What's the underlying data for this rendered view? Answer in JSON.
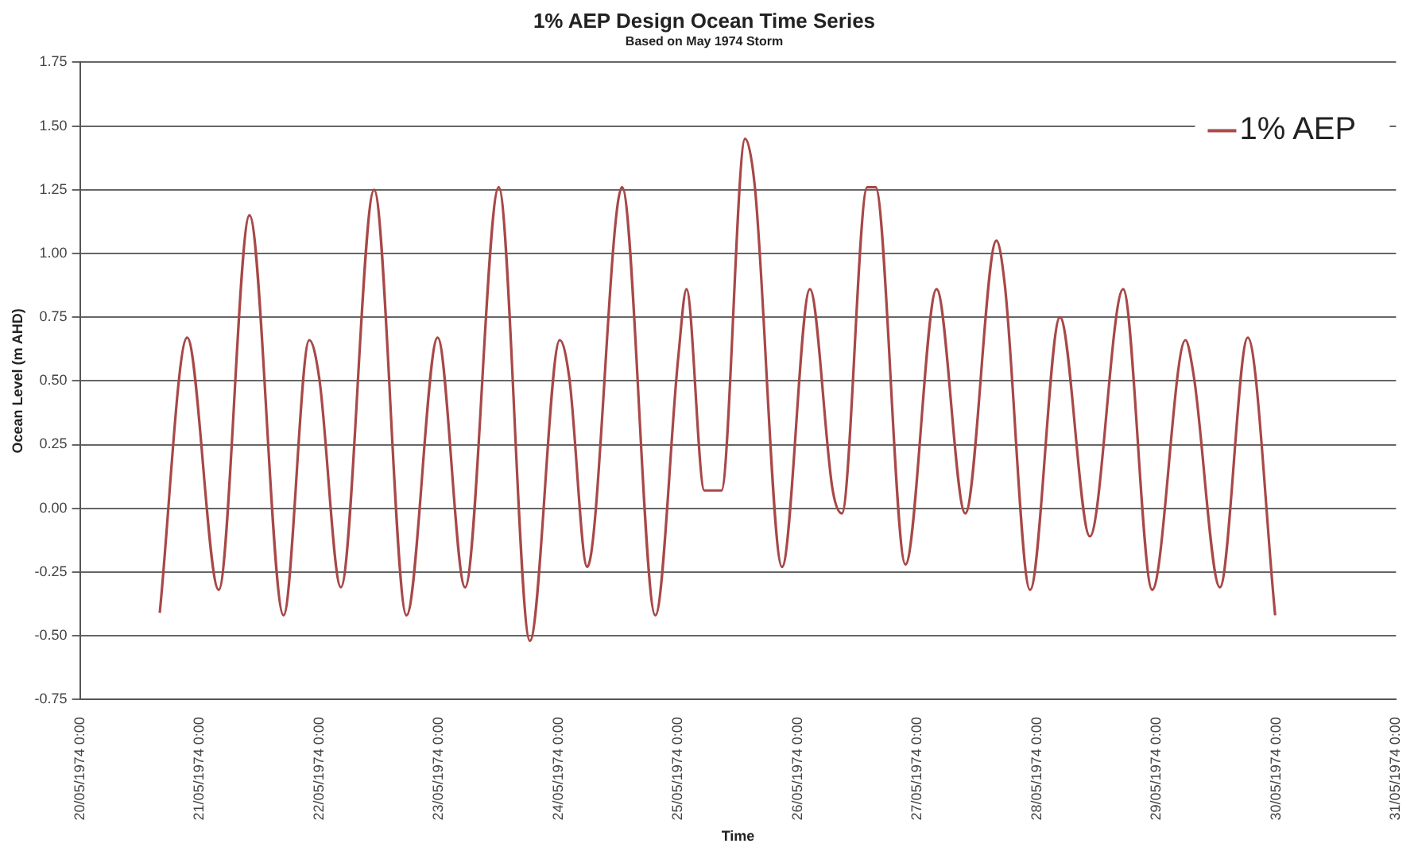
{
  "chart_data": {
    "type": "line",
    "title": "1% AEP Design Ocean Time Series",
    "subtitle": "Based on May 1974 Storm",
    "xlabel": "Time",
    "ylabel": "Ocean Level (m AHD)",
    "x": [
      "1974-05-20T16:00",
      "1974-05-20T21:30",
      "1974-05-21T03:50",
      "1974-05-21T10:00",
      "1974-05-21T16:50",
      "1974-05-21T22:00",
      "1974-05-22T00:00",
      "1974-05-22T04:20",
      "1974-05-22T11:00",
      "1974-05-22T17:30",
      "1974-05-22T23:45",
      "1974-05-23T05:15",
      "1974-05-23T12:00",
      "1974-05-23T18:15",
      "1974-05-24T00:15",
      "1974-05-24T02:10",
      "1974-05-24T05:45",
      "1974-05-24T12:45",
      "1974-05-24T19:25",
      "1974-05-25T00:00",
      "1974-05-25T01:40",
      "1974-05-25T05:15",
      "1974-05-25T08:40",
      "1974-05-25T13:25",
      "1974-05-25T15:20",
      "1974-05-25T20:50",
      "1974-05-26T02:25",
      "1974-05-26T07:00",
      "1974-05-26T08:50",
      "1974-05-26T13:55",
      "1974-05-26T15:35",
      "1974-05-26T21:35",
      "1974-05-27T03:50",
      "1974-05-27T09:35",
      "1974-05-27T15:50",
      "1974-05-27T17:30",
      "1974-05-27T22:35",
      "1974-05-28T04:35",
      "1974-05-28T10:35",
      "1974-05-28T17:15",
      "1974-05-28T23:05",
      "1974-05-29T05:45",
      "1974-05-29T07:25",
      "1974-05-29T12:40",
      "1974-05-29T18:15",
      "1974-05-29T23:45"
    ],
    "series": [
      {
        "name": "1% AEP",
        "color": "#a84848",
        "values": [
          -0.41,
          0.67,
          -0.32,
          1.15,
          -0.42,
          0.66,
          0.51,
          -0.31,
          1.25,
          -0.42,
          0.67,
          -0.31,
          1.26,
          -0.52,
          0.66,
          0.51,
          -0.23,
          1.26,
          -0.42,
          0.59,
          0.86,
          0.07,
          0.07,
          1.45,
          1.27,
          -0.23,
          0.86,
          0.07,
          -0.02,
          1.26,
          1.26,
          -0.22,
          0.86,
          -0.02,
          1.05,
          0.88,
          -0.32,
          0.75,
          -0.11,
          0.86,
          -0.32,
          0.66,
          0.52,
          -0.31,
          0.67,
          -0.42
        ]
      }
    ],
    "xlim": [
      "1974-05-20",
      "1974-05-31"
    ],
    "xticks": [
      {
        "value": "1974-05-20",
        "label": "20/05/1974 0:00"
      },
      {
        "value": "1974-05-21",
        "label": "21/05/1974 0:00"
      },
      {
        "value": "1974-05-22",
        "label": "22/05/1974 0:00"
      },
      {
        "value": "1974-05-23",
        "label": "23/05/1974 0:00"
      },
      {
        "value": "1974-05-24",
        "label": "24/05/1974 0:00"
      },
      {
        "value": "1974-05-25",
        "label": "25/05/1974 0:00"
      },
      {
        "value": "1974-05-26",
        "label": "26/05/1974 0:00"
      },
      {
        "value": "1974-05-27",
        "label": "27/05/1974 0:00"
      },
      {
        "value": "1974-05-28",
        "label": "28/05/1974 0:00"
      },
      {
        "value": "1974-05-29",
        "label": "29/05/1974 0:00"
      },
      {
        "value": "1974-05-30",
        "label": "30/05/1974 0:00"
      },
      {
        "value": "1974-05-31",
        "label": "31/05/1974 0:00"
      }
    ],
    "ylim": [
      -0.75,
      1.75
    ],
    "yticks": [
      {
        "value": -0.75,
        "label": "-0.75"
      },
      {
        "value": -0.5,
        "label": "-0.50"
      },
      {
        "value": -0.25,
        "label": "-0.25"
      },
      {
        "value": 0,
        "label": "0.00"
      },
      {
        "value": 0.25,
        "label": "0.25"
      },
      {
        "value": 0.5,
        "label": "0.50"
      },
      {
        "value": 0.75,
        "label": "0.75"
      },
      {
        "value": 1,
        "label": "1.00"
      },
      {
        "value": 1.25,
        "label": "1.25"
      },
      {
        "value": 1.5,
        "label": "1.50"
      },
      {
        "value": 1.75,
        "label": "1.75"
      }
    ],
    "grid": "y",
    "legend": "top right",
    "marker": "none",
    "line_style": "solid"
  }
}
